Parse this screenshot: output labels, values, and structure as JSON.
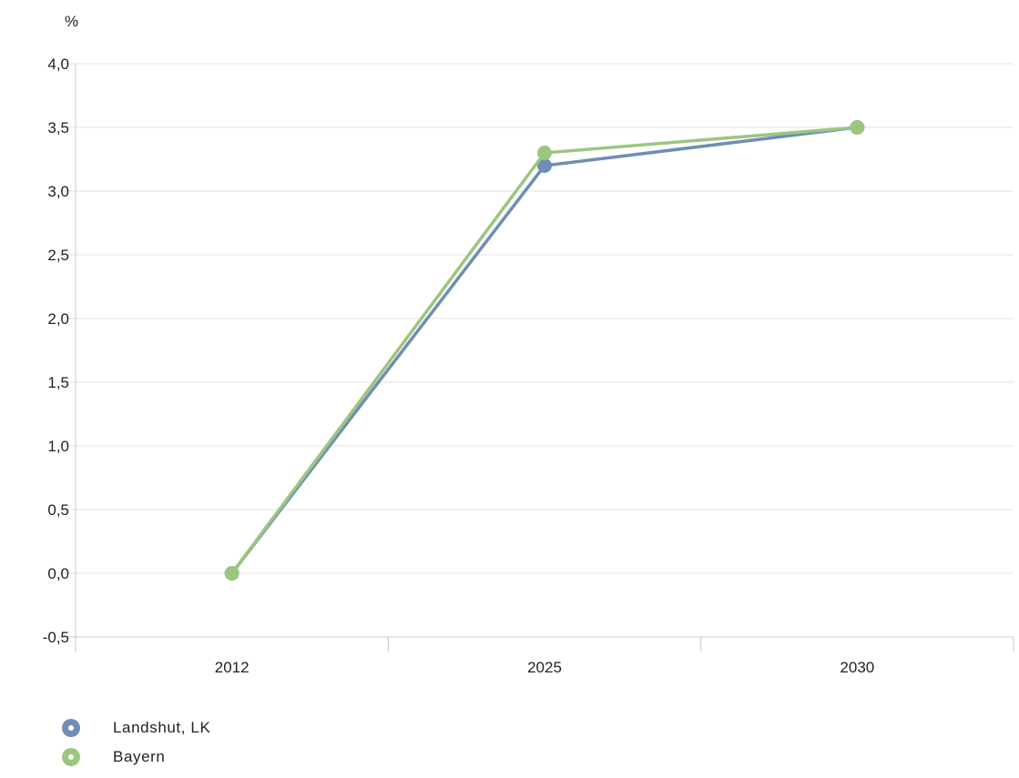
{
  "chart_data": {
    "type": "line",
    "y_unit": "%",
    "categories": [
      "2012",
      "2025",
      "2030"
    ],
    "ylim": [
      -0.5,
      4.0
    ],
    "y_ticks": [
      -0.5,
      0.0,
      0.5,
      1.0,
      1.5,
      2.0,
      2.5,
      3.0,
      3.5,
      4.0
    ],
    "y_tick_labels": [
      "-0,5",
      "0,0",
      "0,5",
      "1,0",
      "1,5",
      "2,0",
      "2,5",
      "3,0",
      "3,5",
      "4,0"
    ],
    "grid": true,
    "legend_position": "bottom-left",
    "series": [
      {
        "name": "Landshut, LK",
        "values": [
          0.0,
          3.2,
          3.5
        ],
        "color": "#6f8db5"
      },
      {
        "name": "Bayern",
        "values": [
          0.0,
          3.3,
          3.5
        ],
        "color": "#9bc67f"
      }
    ]
  }
}
